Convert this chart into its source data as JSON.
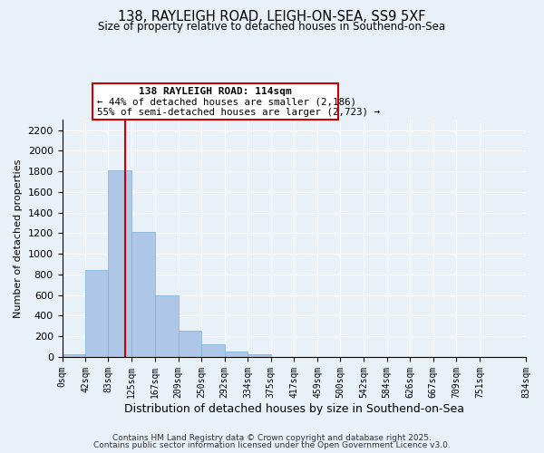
{
  "title": "138, RAYLEIGH ROAD, LEIGH-ON-SEA, SS9 5XF",
  "subtitle": "Size of property relative to detached houses in Southend-on-Sea",
  "xlabel": "Distribution of detached houses by size in Southend-on-Sea",
  "ylabel": "Number of detached properties",
  "bar_values": [
    25,
    840,
    1810,
    1210,
    600,
    255,
    120,
    50,
    25,
    0,
    0,
    0,
    0,
    0,
    0,
    0,
    0,
    0,
    0
  ],
  "bin_edges": [
    0,
    42,
    83,
    125,
    167,
    209,
    250,
    292,
    334,
    375,
    417,
    459,
    500,
    542,
    584,
    626,
    667,
    709,
    751,
    834
  ],
  "tick_labels": [
    "0sqm",
    "42sqm",
    "83sqm",
    "125sqm",
    "167sqm",
    "209sqm",
    "250sqm",
    "292sqm",
    "334sqm",
    "375sqm",
    "417sqm",
    "459sqm",
    "500sqm",
    "542sqm",
    "584sqm",
    "626sqm",
    "667sqm",
    "709sqm",
    "751sqm",
    "834sqm"
  ],
  "bar_color": "#aec6e8",
  "bar_edge_color": "#7bafd4",
  "property_line_x": 114,
  "annotation_title": "138 RAYLEIGH ROAD: 114sqm",
  "annotation_line1": "← 44% of detached houses are smaller (2,186)",
  "annotation_line2": "55% of semi-detached houses are larger (2,723) →",
  "annotation_box_color": "#ffffff",
  "annotation_box_edge": "#cc0000",
  "vline_color": "#cc0000",
  "ylim": [
    0,
    2300
  ],
  "yticks": [
    0,
    200,
    400,
    600,
    800,
    1000,
    1200,
    1400,
    1600,
    1800,
    2000,
    2200
  ],
  "bg_color": "#e8f0f8",
  "grid_color": "#ffffff",
  "footer1": "Contains HM Land Registry data © Crown copyright and database right 2025.",
  "footer2": "Contains public sector information licensed under the Open Government Licence v3.0."
}
